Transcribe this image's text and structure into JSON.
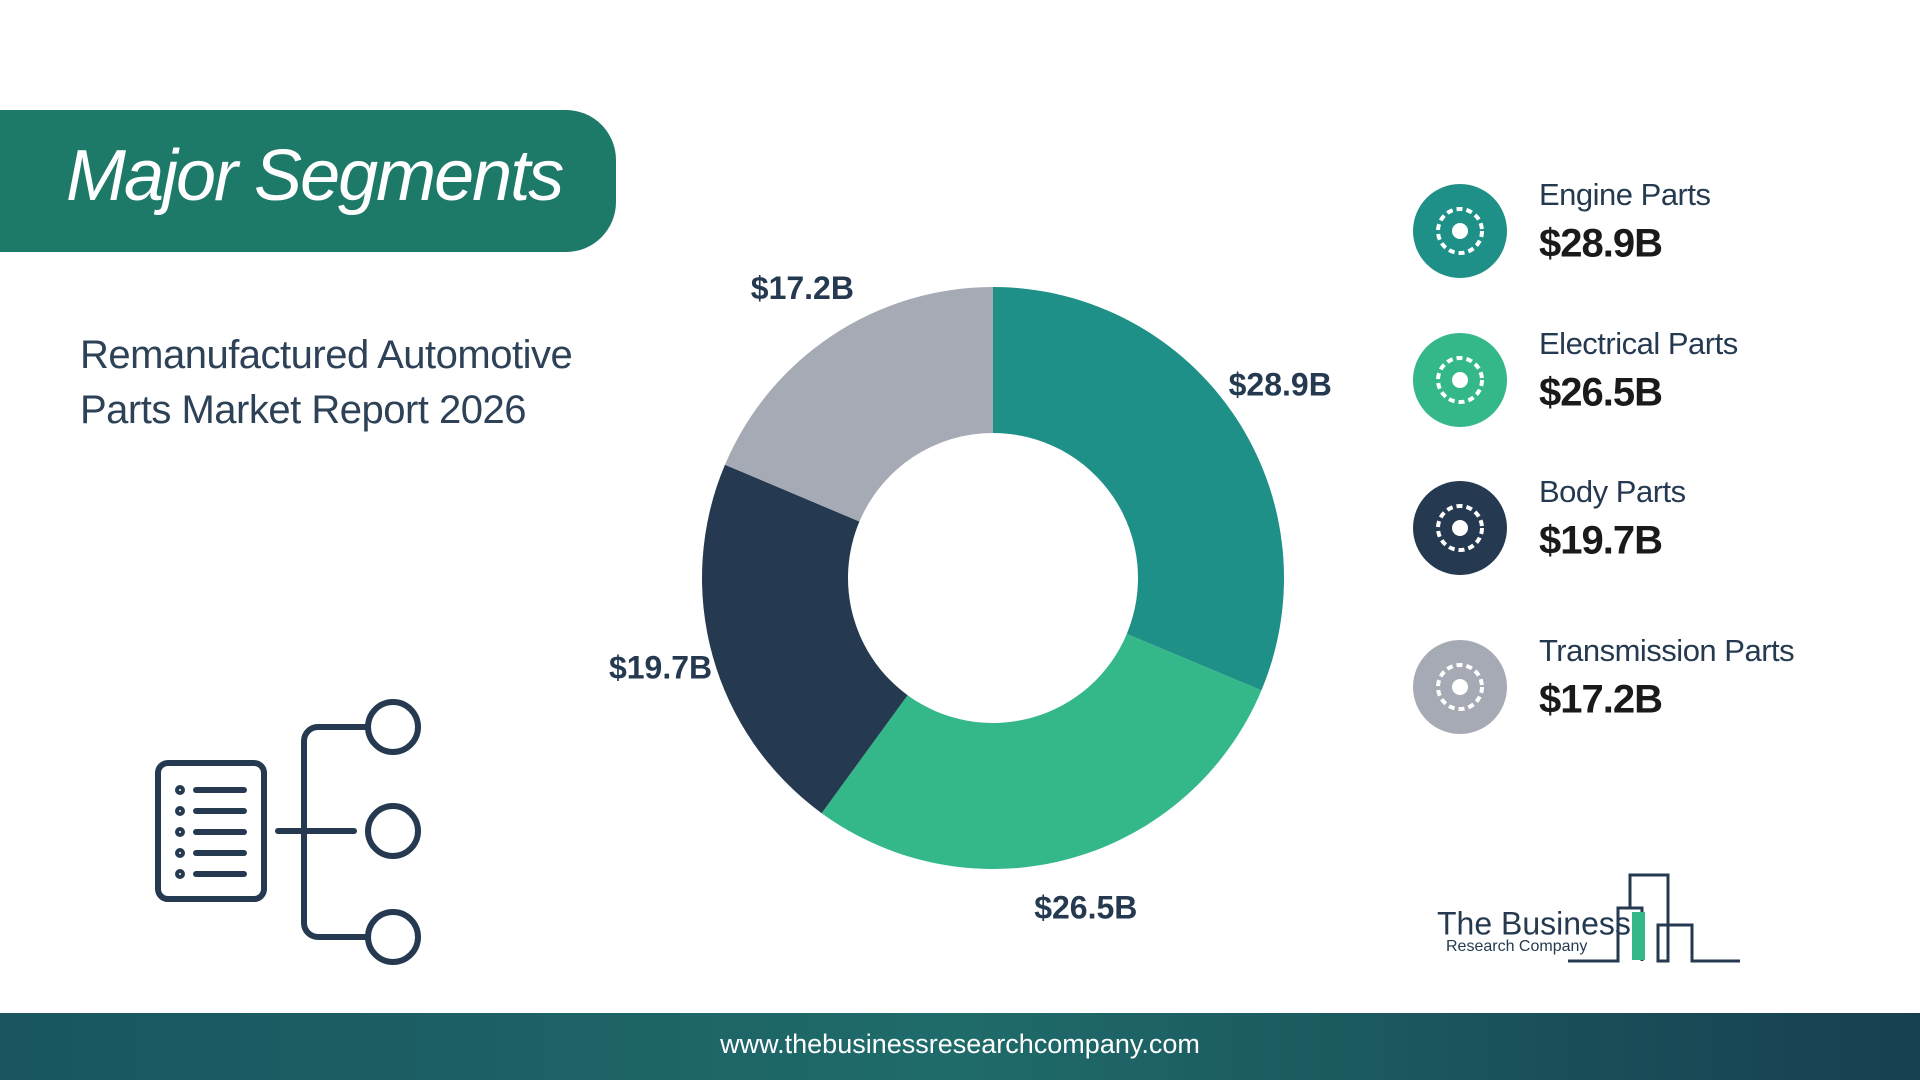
{
  "chart_data": {
    "type": "donut",
    "title": "Major Segments",
    "subtitle": "Remanufactured Automotive Parts Market Report 2026",
    "categories": [
      "Engine Parts",
      "Electrical Parts",
      "Body Parts",
      "Transmission Parts"
    ],
    "values": [
      28.9,
      26.5,
      19.7,
      17.2
    ],
    "value_labels": [
      "$28.9B",
      "$26.5B",
      "$19.7B",
      "$17.2B"
    ],
    "colors": [
      "#1e9088",
      "#34b88a",
      "#253a50",
      "#a6aab4"
    ],
    "legend": "right"
  },
  "logo": {
    "name": "The Business",
    "tagline": "Research Company"
  },
  "footer": {
    "url": "www.thebusinessresearchcompany.com"
  }
}
